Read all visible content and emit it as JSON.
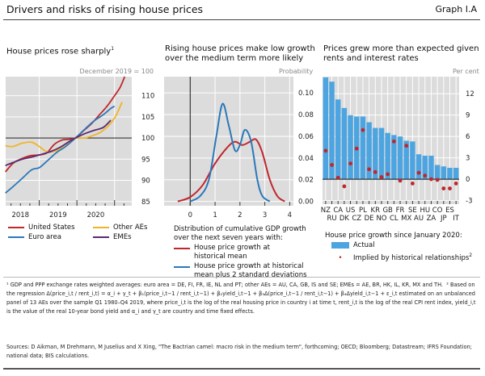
{
  "header": {
    "title": "Drivers and risks of rising house prices",
    "graph_id": "Graph I.A"
  },
  "colors": {
    "us": "#c0262d",
    "euro": "#2b78b9",
    "other": "#f0b429",
    "eme": "#5b2a6e",
    "bar": "#4ca4e0",
    "dot": "#c0262d",
    "grid_bg": "#dcdcdc"
  },
  "chart_data": [
    {
      "type": "line",
      "title": "House prices rose sharply",
      "title_sup": "1",
      "unit": "December 2019 = 100",
      "ylim": [
        84,
        114.5
      ],
      "yticks": [
        85,
        90,
        95,
        100,
        105,
        110
      ],
      "xlim": [
        2018.0,
        2021.35
      ],
      "xticks": [
        "2018",
        "2019",
        "2020"
      ],
      "series": [
        {
          "name": "United States",
          "key": "us",
          "x": [
            2018.1,
            2018.3,
            2018.5,
            2018.75,
            2019,
            2019.2,
            2019.4,
            2019.6,
            2019.8,
            2019.96,
            2020.15,
            2020.4,
            2020.6,
            2020.8,
            2021.0,
            2021.15,
            2021.27
          ],
          "y": [
            92,
            94,
            95,
            95.8,
            96,
            96.5,
            98.5,
            99.5,
            99.7,
            100,
            101.5,
            103.5,
            105.5,
            107.5,
            110,
            112,
            114.5
          ]
        },
        {
          "name": "Euro area",
          "key": "euro",
          "x": [
            2018.1,
            2018.3,
            2018.55,
            2018.8,
            2019,
            2019.2,
            2019.45,
            2019.7,
            2019.96,
            2020.2,
            2020.45,
            2020.7,
            2020.9,
            2021.0
          ],
          "y": [
            87,
            88.5,
            90.5,
            92.5,
            93,
            94.5,
            96.5,
            98,
            100,
            102,
            104,
            105.5,
            107,
            107.5
          ]
        },
        {
          "name": "Other AEs",
          "key": "other",
          "x": [
            2018.1,
            2018.3,
            2018.55,
            2018.8,
            2019,
            2019.2,
            2019.45,
            2019.7,
            2019.96,
            2020.2,
            2020.4,
            2020.65,
            2020.9,
            2021.05,
            2021.2
          ],
          "y": [
            98.2,
            98,
            98.8,
            99,
            98,
            96.8,
            97,
            98.5,
            100,
            100,
            100.5,
            101.5,
            103.5,
            105.5,
            108.5
          ]
        },
        {
          "name": "EMEs",
          "key": "eme",
          "x": [
            2018.1,
            2018.3,
            2018.55,
            2018.8,
            2019.0,
            2019.3,
            2019.55,
            2019.8,
            2019.96,
            2020.2,
            2020.45,
            2020.7,
            2020.9
          ],
          "y": [
            93.5,
            94.2,
            95,
            95.5,
            96,
            96.8,
            97.8,
            99.2,
            100,
            101,
            101.8,
            102.5,
            104.2
          ]
        }
      ]
    },
    {
      "type": "line",
      "title": "Rising house prices make low growth over the medium term more likely",
      "unit": "Probability",
      "xlim": [
        -1.05,
        4.15
      ],
      "ylim": [
        -0.004,
        0.115
      ],
      "xticks": [
        0,
        1,
        2,
        3,
        4
      ],
      "yticks": [
        "0.00",
        "0.02",
        "0.04",
        "0.06",
        "0.08",
        "0.10"
      ],
      "legend_title": "Distribution of cumulative GDP growth over the next seven years with:",
      "series": [
        {
          "name": "House price growth at historical mean",
          "key": "us",
          "x": [
            -0.5,
            0,
            0.5,
            1,
            1.5,
            1.8,
            2.1,
            2.4,
            2.65,
            2.9,
            3.2,
            3.5,
            3.8
          ],
          "y": [
            0,
            0.004,
            0.015,
            0.035,
            0.05,
            0.055,
            0.052,
            0.055,
            0.057,
            0.045,
            0.02,
            0.005,
            0
          ]
        },
        {
          "name": "House price growth at historical mean plus 2 standard deviations",
          "key": "euro",
          "x": [
            0,
            0.4,
            0.75,
            1.05,
            1.3,
            1.55,
            1.8,
            2.0,
            2.2,
            2.45,
            2.7,
            2.9,
            3.2
          ],
          "y": [
            0,
            0.005,
            0.02,
            0.06,
            0.09,
            0.07,
            0.047,
            0.052,
            0.066,
            0.055,
            0.02,
            0.005,
            0
          ]
        }
      ]
    },
    {
      "type": "bar",
      "title": "Prices grew more than expected given rents and interest rates",
      "unit": "Per cent",
      "ylim": [
        -3.5,
        14.4
      ],
      "yticks": [
        -3,
        0,
        3,
        6,
        9,
        12
      ],
      "categories": [
        "NZ",
        "RU",
        "CA",
        "DK",
        "US",
        "CZ",
        "PL",
        "DE",
        "KR",
        "NO",
        "GB",
        "CL",
        "FR",
        "MX",
        "SE",
        "AU",
        "HU",
        "ZA",
        "CO",
        "JP",
        "ES",
        "IT"
      ],
      "legend_title": "House price growth since January 2020:",
      "series": [
        {
          "name": "Actual",
          "key": "bar",
          "values": [
            14.3,
            13.7,
            11.2,
            10,
            9,
            8.8,
            8.8,
            8,
            7.2,
            7.2,
            6.5,
            6.2,
            6,
            5.4,
            5.3,
            3.5,
            3.3,
            3.3,
            2,
            1.8,
            1.6,
            1.6
          ]
        },
        {
          "name": "Implied by historical relationships",
          "sup": "2",
          "key": "dot",
          "values": [
            4,
            2,
            0.2,
            -1,
            2.2,
            4.3,
            6.9,
            1.4,
            1,
            0.3,
            0.7,
            5.3,
            -0.2,
            4.7,
            -0.6,
            0.9,
            0.5,
            0,
            -0.1,
            -1.3,
            -1.3,
            -0.6
          ]
        }
      ]
    }
  ],
  "footnotes": {
    "note1": "¹ GDP and PPP exchange rates weighted averages: euro area = DE, FI, FR, IE, NL and PT; other AEs = AU, CA, GB, IS and SE; EMEs = AE, BR, HK, IL, KR, MX and TH.",
    "note2": "² Based on the regression Δ(price_i,t / rent_i,t) = α_i + γ_t + β₁(price_i,t−1 / rent_i,t−1) + β₂yield_i,t−1 + β₃Δ(price_i,t−1 / rent_i,t−1) + β₄Δyield_i,t−1 + ε_i,t estimated on an unbalanced panel of 13 AEs over the sample Q1 1980–Q4 2019, where price_i,t is the log of the real housing price in country i at time t, rent_i,t is the log of the real CPI rent index, yield_i,t is the value of the real 10-year bond yield and α_i and γ_t are country and time fixed effects.",
    "sources": "Sources: D Aikman, M Drehmann, M Juselius and X Xing, \"The Bactrian camel: macro risk in the medium term\", forthcoming; OECD; Bloomberg; Datastream; IFRS Foundation; national data; BIS calculations."
  }
}
